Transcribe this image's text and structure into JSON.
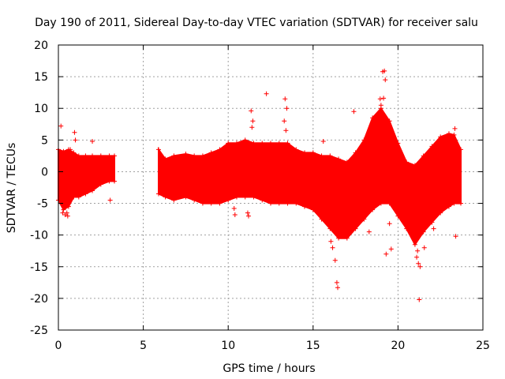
{
  "chart_data": {
    "type": "scatter",
    "title": "Day 190 of 2011, Sidereal Day-to-day VTEC variation (SDTVAR) for receiver salu",
    "xlabel": "GPS time / hours",
    "ylabel": "SDTVAR / TECUs",
    "xlim": [
      0,
      25
    ],
    "ylim": [
      -25,
      20
    ],
    "xticks": [
      "0",
      "5",
      "10",
      "15",
      "20",
      "25"
    ],
    "yticks": [
      "-25",
      "-20",
      "-15",
      "-10",
      "-5",
      "0",
      "5",
      "10",
      "15",
      "20"
    ],
    "grid": true,
    "marker": "+",
    "colors": {
      "series": "#ff0000",
      "grid": "#a0a0a0",
      "axis": "#000000"
    },
    "series": [
      {
        "name": "SDTVAR",
        "note": "dense band envelope sampled as [x_hours, y_min, y_max]",
        "envelope": [
          [
            0.0,
            -4.5,
            3.5
          ],
          [
            0.3,
            -6.0,
            3.2
          ],
          [
            0.6,
            -5.5,
            3.5
          ],
          [
            0.9,
            -4.0,
            3.0
          ],
          [
            1.2,
            -4.0,
            2.5
          ],
          [
            1.6,
            -3.5,
            2.5
          ],
          [
            2.0,
            -3.0,
            2.5
          ],
          [
            2.5,
            -2.0,
            2.5
          ],
          [
            3.0,
            -1.5,
            2.5
          ],
          [
            3.3,
            -1.5,
            2.5
          ],
          null,
          [
            5.9,
            -3.5,
            3.5
          ],
          [
            6.3,
            -4.0,
            2.0
          ],
          [
            6.8,
            -4.5,
            2.5
          ],
          [
            7.5,
            -4.0,
            2.8
          ],
          [
            8.0,
            -4.5,
            2.5
          ],
          [
            8.5,
            -5.0,
            2.5
          ],
          [
            9.0,
            -5.0,
            3.0
          ],
          [
            9.5,
            -5.0,
            3.5
          ],
          [
            10.0,
            -4.5,
            4.5
          ],
          [
            10.5,
            -4.0,
            4.5
          ],
          [
            11.0,
            -4.0,
            5.0
          ],
          [
            11.5,
            -4.0,
            4.5
          ],
          [
            12.0,
            -4.5,
            4.5
          ],
          [
            12.5,
            -5.0,
            4.5
          ],
          [
            13.0,
            -5.0,
            4.5
          ],
          [
            13.5,
            -5.0,
            4.5
          ],
          [
            14.0,
            -5.0,
            3.5
          ],
          [
            14.5,
            -5.5,
            3.0
          ],
          [
            15.0,
            -6.0,
            3.0
          ],
          [
            15.5,
            -7.5,
            2.5
          ],
          [
            16.0,
            -9.0,
            2.5
          ],
          [
            16.5,
            -10.5,
            2.0
          ],
          [
            17.0,
            -10.5,
            1.5
          ],
          [
            17.5,
            -9.0,
            3.0
          ],
          [
            18.0,
            -7.5,
            5.0
          ],
          [
            18.5,
            -6.0,
            8.5
          ],
          [
            19.0,
            -5.0,
            10.0
          ],
          [
            19.5,
            -5.0,
            8.0
          ],
          [
            20.0,
            -7.0,
            4.5
          ],
          [
            20.5,
            -9.0,
            1.5
          ],
          [
            21.0,
            -11.5,
            1.0
          ],
          [
            21.5,
            -9.5,
            2.5
          ],
          [
            22.0,
            -8.0,
            4.0
          ],
          [
            22.5,
            -6.5,
            5.5
          ],
          [
            23.0,
            -5.5,
            6.0
          ],
          [
            23.3,
            -5.0,
            5.8
          ],
          [
            23.7,
            -5.0,
            3.5
          ]
        ],
        "points": [
          [
            0.15,
            7.2
          ],
          [
            0.25,
            -6.5
          ],
          [
            0.4,
            -6.8
          ],
          [
            0.5,
            -6.5
          ],
          [
            0.55,
            -7.0
          ],
          [
            0.95,
            6.2
          ],
          [
            1.0,
            5.0
          ],
          [
            0.7,
            3.5
          ],
          [
            2.0,
            4.8
          ],
          [
            3.05,
            -4.5
          ],
          [
            10.35,
            -5.8
          ],
          [
            10.4,
            -6.8
          ],
          [
            11.15,
            -6.5
          ],
          [
            11.2,
            -7.0
          ],
          [
            11.35,
            9.6
          ],
          [
            11.45,
            8.0
          ],
          [
            11.4,
            7.0
          ],
          [
            12.25,
            12.3
          ],
          [
            13.35,
            11.5
          ],
          [
            13.45,
            10.0
          ],
          [
            13.3,
            8.0
          ],
          [
            13.4,
            6.5
          ],
          [
            15.6,
            4.8
          ],
          [
            16.05,
            -11.0
          ],
          [
            16.15,
            -12.0
          ],
          [
            16.3,
            -14.0
          ],
          [
            16.4,
            -17.5
          ],
          [
            16.45,
            -18.3
          ],
          [
            17.4,
            9.5
          ],
          [
            18.3,
            -9.5
          ],
          [
            18.95,
            11.5
          ],
          [
            19.0,
            10.5
          ],
          [
            19.1,
            15.8
          ],
          [
            19.2,
            15.9
          ],
          [
            19.25,
            14.5
          ],
          [
            19.15,
            11.6
          ],
          [
            19.3,
            -13.0
          ],
          [
            19.6,
            -12.2
          ],
          [
            19.5,
            -8.2
          ],
          [
            21.1,
            -13.5
          ],
          [
            21.2,
            -14.5
          ],
          [
            21.3,
            -15.0
          ],
          [
            21.15,
            -12.5
          ],
          [
            21.55,
            -12.0
          ],
          [
            21.25,
            -20.2
          ],
          [
            23.35,
            6.8
          ],
          [
            23.4,
            -10.2
          ],
          [
            22.1,
            -9.0
          ]
        ]
      }
    ]
  }
}
